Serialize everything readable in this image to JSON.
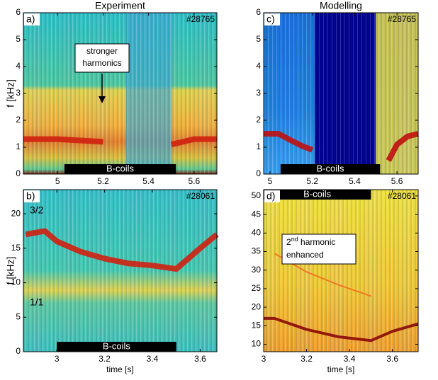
{
  "chart_data": [
    {
      "type": "spectrogram",
      "title": "Experiment",
      "panel_label": "a)",
      "shot": "#28765",
      "ylabel": "f [kHz]",
      "xlim": [
        4.85,
        5.7
      ],
      "xticks": [
        5,
        5.2,
        5.4,
        5.6
      ],
      "ylim": [
        0,
        6
      ],
      "yticks": [
        0,
        1,
        2,
        3,
        4,
        5,
        6
      ],
      "bcoils": {
        "label": "B-coils",
        "range": [
          5.03,
          5.52
        ]
      },
      "note": [
        "stronger",
        "harmonics"
      ],
      "series": [
        {
          "color": "#d02010",
          "x": [
            4.85,
            5.0,
            5.1,
            5.2,
            5.3,
            5.5,
            5.6,
            5.7
          ],
          "values": [
            1.3,
            1.3,
            1.25,
            1.2,
            null,
            1.1,
            1.3,
            1.3
          ]
        }
      ]
    },
    {
      "type": "spectrogram",
      "panel_label": "b)",
      "shot": "#28061",
      "ylabel": "f [kHz]",
      "xlabel": "time [s]",
      "xlim": [
        2.86,
        3.67
      ],
      "xticks": [
        3,
        3.2,
        3.4,
        3.6
      ],
      "ylim": [
        0,
        23.5
      ],
      "yticks": [
        0,
        5,
        10,
        15,
        20
      ],
      "bcoils": {
        "label": "B-coils",
        "range": [
          3.0,
          3.5
        ]
      },
      "labels": [
        "3/2",
        "1/1"
      ],
      "series": [
        {
          "color": "#d02010",
          "x": [
            2.87,
            2.95,
            3.0,
            3.1,
            3.2,
            3.3,
            3.4,
            3.5,
            3.55,
            3.6,
            3.67
          ],
          "values": [
            17,
            17.5,
            16,
            14.5,
            13.5,
            12.8,
            12.5,
            12,
            13.5,
            15,
            17
          ]
        }
      ]
    },
    {
      "type": "spectrogram",
      "title": "Modelling",
      "panel_label": "c)",
      "shot": "#28765",
      "xlim": [
        4.97,
        5.7
      ],
      "xticks": [
        5,
        5.2,
        5.4,
        5.6
      ],
      "ylim": [
        0,
        6
      ],
      "yticks": [
        0,
        1,
        2,
        3,
        4,
        5,
        6
      ],
      "bcoils": {
        "label": "B-coils",
        "range": [
          5.05,
          5.52
        ]
      },
      "series": [
        {
          "color": "#c01010",
          "x": [
            4.97,
            5.04,
            5.1,
            5.15,
            5.2,
            5.52,
            5.56,
            5.6,
            5.65,
            5.7
          ],
          "values": [
            1.5,
            1.5,
            1.25,
            1.05,
            0.9,
            null,
            0.5,
            1.1,
            1.4,
            1.5
          ]
        }
      ]
    },
    {
      "type": "spectrogram",
      "panel_label": "d)",
      "shot": "#28061",
      "xlabel": "time [s]",
      "xlim": [
        3.0,
        3.72
      ],
      "xticks": [
        3,
        3.2,
        3.4,
        3.6
      ],
      "ylim": [
        8,
        51.7
      ],
      "yticks": [
        10,
        15,
        20,
        25,
        30,
        35,
        40,
        45,
        50
      ],
      "bcoils": {
        "label": "B-coils",
        "range": [
          3.0,
          3.5
        ]
      },
      "note": [
        "2",
        " harmonic",
        "enhanced"
      ],
      "note_sup": "nd",
      "series": [
        {
          "color": "#8a0808",
          "x": [
            3.0,
            3.05,
            3.2,
            3.35,
            3.5,
            3.6,
            3.72
          ],
          "values": [
            17,
            17,
            14,
            12,
            11,
            13.5,
            15.5
          ]
        },
        {
          "color": "#f07020",
          "x": [
            3.05,
            3.2,
            3.35,
            3.5
          ],
          "values": [
            34.5,
            29.5,
            26,
            23
          ]
        }
      ]
    }
  ]
}
